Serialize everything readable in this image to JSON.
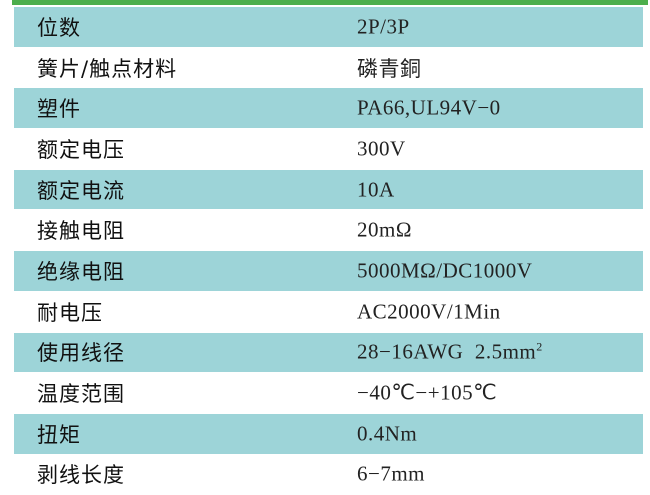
{
  "colors": {
    "header_bar": "#4cae4c",
    "row_stripe": "#9dd4d8"
  },
  "rows": [
    {
      "label": "位数",
      "value": "2P/3P"
    },
    {
      "label": "簧片/触点材料",
      "value": "磷青銅"
    },
    {
      "label": "塑件",
      "value": "PA66,UL94V−0"
    },
    {
      "label": "额定电压",
      "value": "300V"
    },
    {
      "label": "额定电流",
      "value": "10A"
    },
    {
      "label": "接触电阻",
      "value": "20mΩ"
    },
    {
      "label": "绝缘电阻",
      "value": "5000MΩ/DC1000V"
    },
    {
      "label": "耐电压",
      "value": "AC2000V/1Min"
    },
    {
      "label": "使用线径",
      "value": "28−16AWG  2.5mm",
      "sup": "2"
    },
    {
      "label": "温度范围",
      "value": "−40℃−+105℃"
    },
    {
      "label": "扭矩",
      "value": "0.4Nm"
    },
    {
      "label": "剥线长度",
      "value": "6−7mm"
    }
  ]
}
